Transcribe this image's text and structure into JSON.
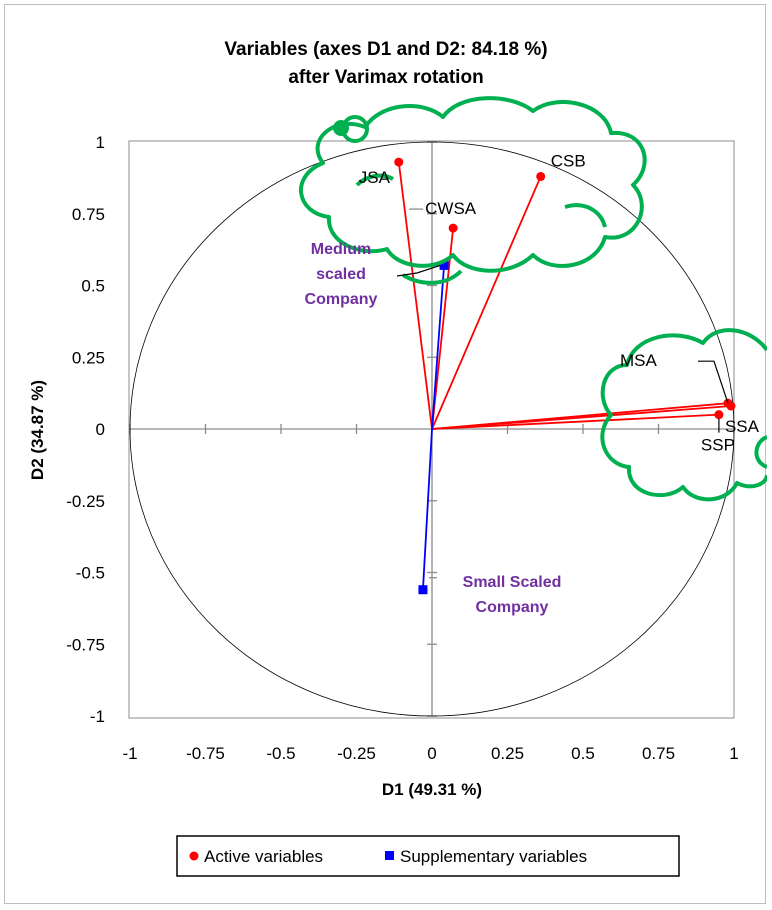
{
  "chart_data": {
    "type": "scatter",
    "title": "Variables (axes D1 and D2: 84.18 %)",
    "subtitle": "after Varimax rotation",
    "xlabel": "D1 (49.31 %)",
    "ylabel": "D2 (34.87 %)",
    "xlim": [
      -1,
      1
    ],
    "ylim": [
      -1,
      1
    ],
    "x_ticks": [
      "-1",
      "-0.75",
      "-0.5",
      "-0.25",
      "0",
      "0.25",
      "0.5",
      "0.75",
      "1"
    ],
    "y_ticks": [
      "1",
      "0.75",
      "0.5",
      "0.25",
      "0",
      "-0.25",
      "-0.5",
      "-0.75",
      "-1"
    ],
    "unit_circle": true,
    "series": [
      {
        "name": "Active variables",
        "color": "#ff0000",
        "marker": "circle",
        "points": [
          {
            "label": "JSA",
            "x": -0.11,
            "y": 0.93
          },
          {
            "label": "CWSA",
            "x": 0.07,
            "y": 0.7
          },
          {
            "label": "CSB",
            "x": 0.36,
            "y": 0.88
          },
          {
            "label": "MSA",
            "x": 0.98,
            "y": 0.09
          },
          {
            "label": "SSA",
            "x": 0.99,
            "y": 0.08
          },
          {
            "label": "SSP",
            "x": 0.95,
            "y": 0.05
          }
        ]
      },
      {
        "name": "Supplementary variables",
        "color": "#0000ff",
        "marker": "square",
        "points": [
          {
            "label": "Medium scaled Company",
            "x": 0.04,
            "y": 0.57
          },
          {
            "label": "Small Scaled Company",
            "x": -0.03,
            "y": -0.56
          }
        ]
      }
    ],
    "legend": {
      "placement": "bottom"
    },
    "annotations": {
      "cloud_color": "#00b050",
      "supplementary_label_color": "#7030a0"
    }
  }
}
